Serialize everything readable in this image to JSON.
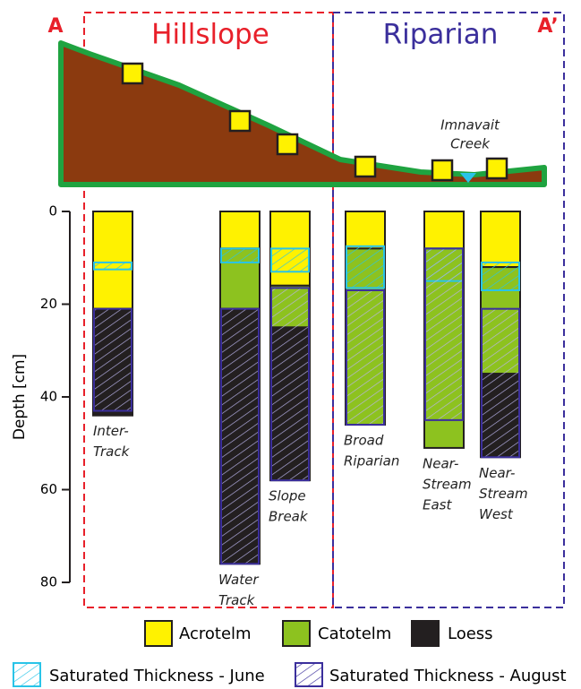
{
  "chart_data": {
    "type": "soil-profile",
    "labels": {
      "a": "A",
      "a_prime": "A’",
      "hillslope": "Hillslope",
      "riparian": "Riparian",
      "creek": [
        "Imnavait",
        "Creek"
      ]
    },
    "y_label": "Depth [cm]",
    "ylim": [
      0,
      80
    ],
    "yticks": [
      0,
      20,
      40,
      60,
      80
    ],
    "y_inverted": true,
    "categories": [
      [
        "Inter-",
        "Track"
      ],
      [
        "Water",
        "Track"
      ],
      [
        "Slope",
        "Break"
      ],
      [
        "Broad",
        "Riparian"
      ],
      [
        "Near-",
        "Stream",
        "East"
      ],
      [
        "Near-",
        "Stream",
        "West"
      ]
    ],
    "series": [
      {
        "name": "Acrotelm",
        "color": "#fff200",
        "pattern": "solid",
        "values": [
          [
            0,
            21
          ],
          [
            0,
            8
          ],
          [
            0,
            16
          ],
          [
            0,
            8
          ],
          [
            0,
            8
          ],
          [
            0,
            12
          ]
        ]
      },
      {
        "name": "Catotelm",
        "color": "#8dc21f",
        "pattern": "solid",
        "values": [
          null,
          [
            8,
            21
          ],
          [
            16,
            25
          ],
          [
            8,
            46
          ],
          [
            8,
            51
          ],
          [
            12,
            35
          ]
        ]
      },
      {
        "name": "Loess",
        "color": "#231f20",
        "pattern": "solid",
        "values": [
          [
            21,
            44
          ],
          [
            21,
            76
          ],
          [
            25,
            58
          ],
          null,
          null,
          [
            35,
            53
          ]
        ]
      },
      {
        "name": "Saturated Thickness - June",
        "color": "#29c4e8",
        "pattern": "hatch",
        "values": [
          [
            11,
            12.5
          ],
          [
            8,
            11
          ],
          [
            8,
            13
          ],
          [
            7.5,
            16.5
          ],
          [
            8,
            15
          ],
          [
            11,
            17
          ]
        ]
      },
      {
        "name": "Saturated Thickness - August",
        "color": "#3b2f9c",
        "pattern": "hatch",
        "values": [
          [
            21,
            43
          ],
          [
            21,
            76
          ],
          [
            16.5,
            58
          ],
          [
            17,
            46
          ],
          [
            8,
            45
          ],
          [
            21,
            53
          ]
        ]
      }
    ]
  }
}
